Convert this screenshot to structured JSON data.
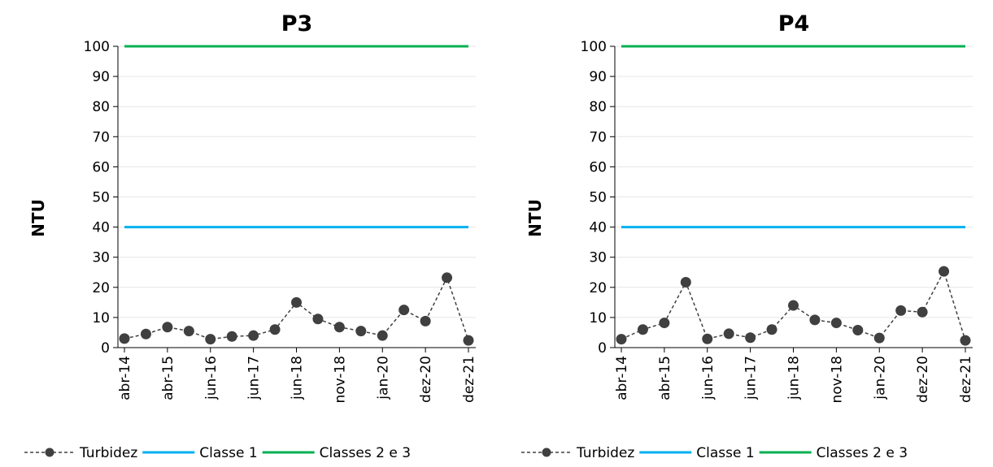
{
  "chart_data": [
    {
      "type": "line",
      "title": "P3",
      "ylabel": "NTU",
      "xlabel": "",
      "ylim": [
        0,
        100
      ],
      "yticks": [
        0,
        10,
        20,
        30,
        40,
        50,
        60,
        70,
        80,
        90,
        100
      ],
      "xtick_labels": [
        "abr-14",
        "abr-15",
        "jun-16",
        "jun-17",
        "jun-18",
        "nov-18",
        "jan-20",
        "dez-20",
        "dez-21"
      ],
      "series": [
        {
          "name": "Turbidez",
          "style": "dashed-marker",
          "color": "#404040",
          "values": [
            3.0,
            4.5,
            6.8,
            5.5,
            2.8,
            3.7,
            4.0,
            6.0,
            15.0,
            9.5,
            6.8,
            5.5,
            4.0,
            12.5,
            8.8,
            23.2,
            2.4
          ]
        },
        {
          "name": "Classe 1",
          "style": "solid",
          "color": "#00b0f0",
          "constant": 40
        },
        {
          "name": "Classes 2 e 3",
          "style": "solid",
          "color": "#00b050",
          "constant": 100
        }
      ],
      "grid": true,
      "legend": "bottom"
    },
    {
      "type": "line",
      "title": "P4",
      "ylabel": "NTU",
      "xlabel": "",
      "ylim": [
        0,
        100
      ],
      "yticks": [
        0,
        10,
        20,
        30,
        40,
        50,
        60,
        70,
        80,
        90,
        100
      ],
      "xtick_labels": [
        "abr-14",
        "abr-15",
        "jun-16",
        "jun-17",
        "jun-18",
        "nov-18",
        "jan-20",
        "dez-20",
        "dez-21"
      ],
      "series": [
        {
          "name": "Turbidez",
          "style": "dashed-marker",
          "color": "#404040",
          "values": [
            2.8,
            6.0,
            8.2,
            21.7,
            2.9,
            4.6,
            3.3,
            6.0,
            14.0,
            9.2,
            8.2,
            5.8,
            3.2,
            12.3,
            11.8,
            25.3,
            2.4
          ]
        },
        {
          "name": "Classe 1",
          "style": "solid",
          "color": "#00b0f0",
          "constant": 40
        },
        {
          "name": "Classes 2 e 3",
          "style": "solid",
          "color": "#00b050",
          "constant": 100
        }
      ],
      "grid": true,
      "legend": "bottom"
    }
  ]
}
